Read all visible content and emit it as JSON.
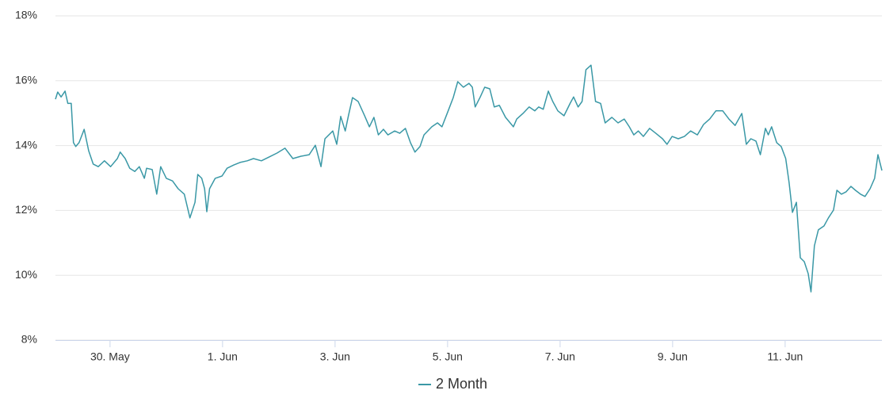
{
  "chart_data": {
    "type": "line",
    "x": [
      -0.97,
      -0.93,
      -0.87,
      -0.8,
      -0.75,
      -0.69,
      -0.65,
      -0.61,
      -0.55,
      -0.46,
      -0.38,
      -0.3,
      -0.21,
      -0.1,
      0.01,
      0.13,
      0.18,
      0.27,
      0.35,
      0.44,
      0.52,
      0.61,
      0.65,
      0.75,
      0.83,
      0.9,
      1.0,
      1.11,
      1.21,
      1.32,
      1.42,
      1.51,
      1.56,
      1.63,
      1.68,
      1.72,
      1.77,
      1.87,
      1.99,
      2.08,
      2.2,
      2.31,
      2.44,
      2.55,
      2.69,
      2.83,
      2.97,
      3.11,
      3.25,
      3.39,
      3.54,
      3.65,
      3.75,
      3.82,
      3.96,
      4.03,
      4.1,
      4.18,
      4.24,
      4.31,
      4.41,
      4.52,
      4.61,
      4.69,
      4.77,
      4.86,
      4.94,
      5.06,
      5.15,
      5.25,
      5.34,
      5.42,
      5.51,
      5.58,
      5.72,
      5.82,
      5.9,
      6.01,
      6.1,
      6.18,
      6.28,
      6.38,
      6.44,
      6.49,
      6.58,
      6.66,
      6.75,
      6.83,
      6.92,
      7.03,
      7.17,
      7.23,
      7.34,
      7.45,
      7.55,
      7.62,
      7.7,
      7.79,
      7.87,
      7.96,
      8.07,
      8.18,
      8.24,
      8.32,
      8.39,
      8.46,
      8.55,
      8.63,
      8.72,
      8.8,
      8.92,
      9.03,
      9.14,
      9.23,
      9.31,
      9.39,
      9.48,
      9.59,
      9.7,
      9.82,
      9.9,
      9.99,
      10.1,
      10.21,
      10.32,
      10.44,
      10.55,
      10.66,
      10.77,
      10.89,
      11.0,
      11.11,
      11.23,
      11.31,
      11.39,
      11.48,
      11.56,
      11.65,
      11.7,
      11.76,
      11.85,
      11.93,
      12.01,
      12.07,
      12.13,
      12.2,
      12.27,
      12.34,
      12.41,
      12.46,
      12.52,
      12.59,
      12.69,
      12.77,
      12.86,
      12.92,
      13.0,
      13.08,
      13.17,
      13.25,
      13.34,
      13.42,
      13.51,
      13.59,
      13.65,
      13.72
    ],
    "series": [
      {
        "name": "2 Month",
        "color": "#3a98a6",
        "values": [
          15.43,
          15.65,
          15.5,
          15.68,
          15.3,
          15.3,
          14.09,
          13.97,
          14.09,
          14.5,
          13.84,
          13.43,
          13.35,
          13.53,
          13.35,
          13.6,
          13.8,
          13.6,
          13.3,
          13.2,
          13.35,
          12.99,
          13.3,
          13.26,
          12.5,
          13.35,
          12.99,
          12.91,
          12.67,
          12.5,
          11.77,
          12.25,
          13.11,
          12.99,
          12.67,
          11.96,
          12.67,
          12.99,
          13.06,
          13.3,
          13.4,
          13.48,
          13.53,
          13.6,
          13.53,
          13.65,
          13.77,
          13.92,
          13.6,
          13.67,
          13.72,
          14.01,
          13.35,
          14.21,
          14.45,
          14.04,
          14.9,
          14.45,
          14.94,
          15.48,
          15.36,
          14.94,
          14.58,
          14.87,
          14.33,
          14.5,
          14.33,
          14.45,
          14.38,
          14.53,
          14.09,
          13.8,
          13.97,
          14.33,
          14.58,
          14.7,
          14.58,
          15.07,
          15.48,
          15.97,
          15.8,
          15.92,
          15.8,
          15.19,
          15.5,
          15.8,
          15.75,
          15.19,
          15.24,
          14.87,
          14.58,
          14.82,
          14.99,
          15.19,
          15.07,
          15.19,
          15.12,
          15.68,
          15.36,
          15.07,
          14.92,
          15.31,
          15.5,
          15.19,
          15.36,
          16.34,
          16.48,
          15.36,
          15.3,
          14.7,
          14.87,
          14.7,
          14.82,
          14.58,
          14.33,
          14.45,
          14.28,
          14.53,
          14.38,
          14.21,
          14.04,
          14.28,
          14.21,
          14.28,
          14.45,
          14.33,
          14.65,
          14.82,
          15.07,
          15.07,
          14.82,
          14.62,
          14.99,
          14.04,
          14.21,
          14.14,
          13.72,
          14.53,
          14.33,
          14.58,
          14.09,
          13.97,
          13.6,
          12.87,
          11.94,
          12.25,
          10.54,
          10.42,
          10.05,
          9.49,
          10.91,
          11.4,
          11.52,
          11.77,
          12.01,
          12.62,
          12.5,
          12.57,
          12.74,
          12.62,
          12.5,
          12.43,
          12.67,
          12.99,
          13.72,
          13.23
        ]
      }
    ],
    "xlim": [
      -0.97,
      13.72
    ],
    "xticks": [
      {
        "value": 0,
        "label": "30. May"
      },
      {
        "value": 2,
        "label": "1. Jun"
      },
      {
        "value": 4,
        "label": "3. Jun"
      },
      {
        "value": 6,
        "label": "5. Jun"
      },
      {
        "value": 8,
        "label": "7. Jun"
      },
      {
        "value": 10,
        "label": "9. Jun"
      },
      {
        "value": 12,
        "label": "11. Jun"
      }
    ],
    "ylim": [
      8,
      18
    ],
    "yticks": [
      {
        "value": 8,
        "label": "8%"
      },
      {
        "value": 10,
        "label": "10%"
      },
      {
        "value": 12,
        "label": "12%"
      },
      {
        "value": 14,
        "label": "14%"
      },
      {
        "value": 16,
        "label": "16%"
      },
      {
        "value": 18,
        "label": "18%"
      }
    ],
    "grid": true,
    "legend": "bottom"
  }
}
